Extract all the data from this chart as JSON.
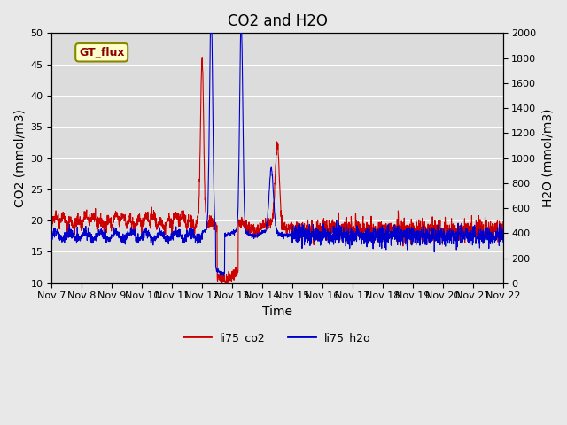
{
  "title": "CO2 and H2O",
  "xlabel": "Time",
  "ylabel_left": "CO2 (mmol/m3)",
  "ylabel_right": "H2O (mmol/m3)",
  "ylim_left": [
    10,
    50
  ],
  "ylim_right": [
    0,
    2000
  ],
  "yticks_left": [
    10,
    15,
    20,
    25,
    30,
    35,
    40,
    45,
    50
  ],
  "yticks_right": [
    0,
    200,
    400,
    600,
    800,
    1000,
    1200,
    1400,
    1600,
    1800,
    2000
  ],
  "xtick_labels": [
    "Nov 7",
    "Nov 8",
    "Nov 9",
    "Nov 10",
    "Nov 11",
    "Nov 12",
    "Nov 13",
    "Nov 14",
    "Nov 15",
    "Nov 16",
    "Nov 17",
    "Nov 18",
    "Nov 19",
    "Nov 20",
    "Nov 21",
    "Nov 22"
  ],
  "co2_color": "#cc0000",
  "h2o_color": "#0000cc",
  "background_color": "#e8e8e8",
  "plot_bg_color": "#dcdcdc",
  "annotation_text": "GT_flux",
  "annotation_bg": "#ffffcc",
  "annotation_border": "#888800",
  "legend_entries": [
    "li75_co2",
    "li75_h2o"
  ],
  "title_fontsize": 12,
  "axis_fontsize": 10,
  "tick_fontsize": 8
}
